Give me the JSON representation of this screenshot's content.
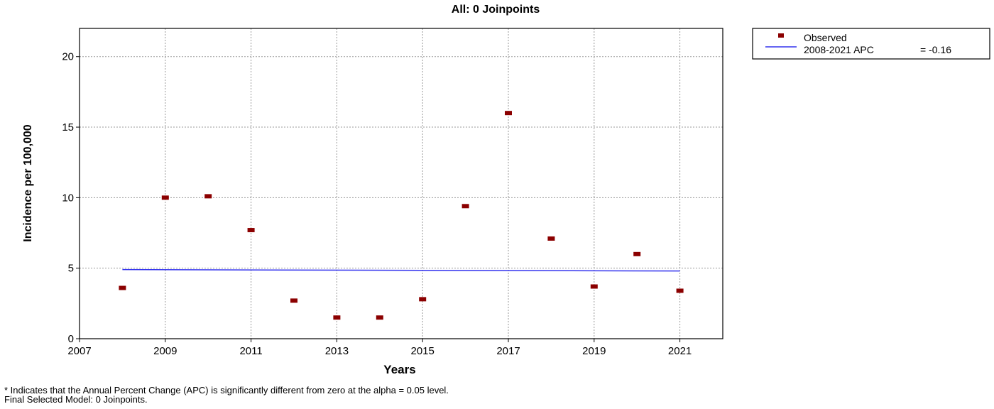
{
  "chart_data": {
    "type": "scatter",
    "title": "All: 0 Joinpoints",
    "xlabel": "Years",
    "ylabel": "Incidence per 100,000",
    "xlim": [
      2007,
      2022
    ],
    "ylim": [
      0,
      22
    ],
    "x_ticks": [
      "2007",
      "2009",
      "2011",
      "2013",
      "2015",
      "2017",
      "2019",
      "2021"
    ],
    "y_ticks": [
      "0",
      "5",
      "10",
      "15",
      "20"
    ],
    "grid": true,
    "legend_position": "top-right, outside plot",
    "series": [
      {
        "name": "Observed",
        "kind": "points",
        "color": "#8b0000",
        "x": [
          2008,
          2009,
          2010,
          2011,
          2012,
          2013,
          2014,
          2015,
          2016,
          2017,
          2018,
          2019,
          2020,
          2021
        ],
        "y": [
          3.6,
          10.0,
          10.1,
          7.7,
          2.7,
          1.5,
          1.5,
          2.8,
          9.4,
          16.0,
          7.1,
          3.7,
          6.0,
          3.4
        ]
      },
      {
        "name": "2008-2021 APC",
        "legend_value": "= -0.16",
        "kind": "line",
        "color": "#3333ee",
        "x": [
          2008,
          2021
        ],
        "y": [
          4.9,
          4.8
        ]
      }
    ]
  },
  "footnotes": {
    "line1": "* Indicates that the Annual Percent Change (APC) is significantly different from zero at the alpha = 0.05 level.",
    "line2": "Final Selected Model: 0 Joinpoints."
  }
}
